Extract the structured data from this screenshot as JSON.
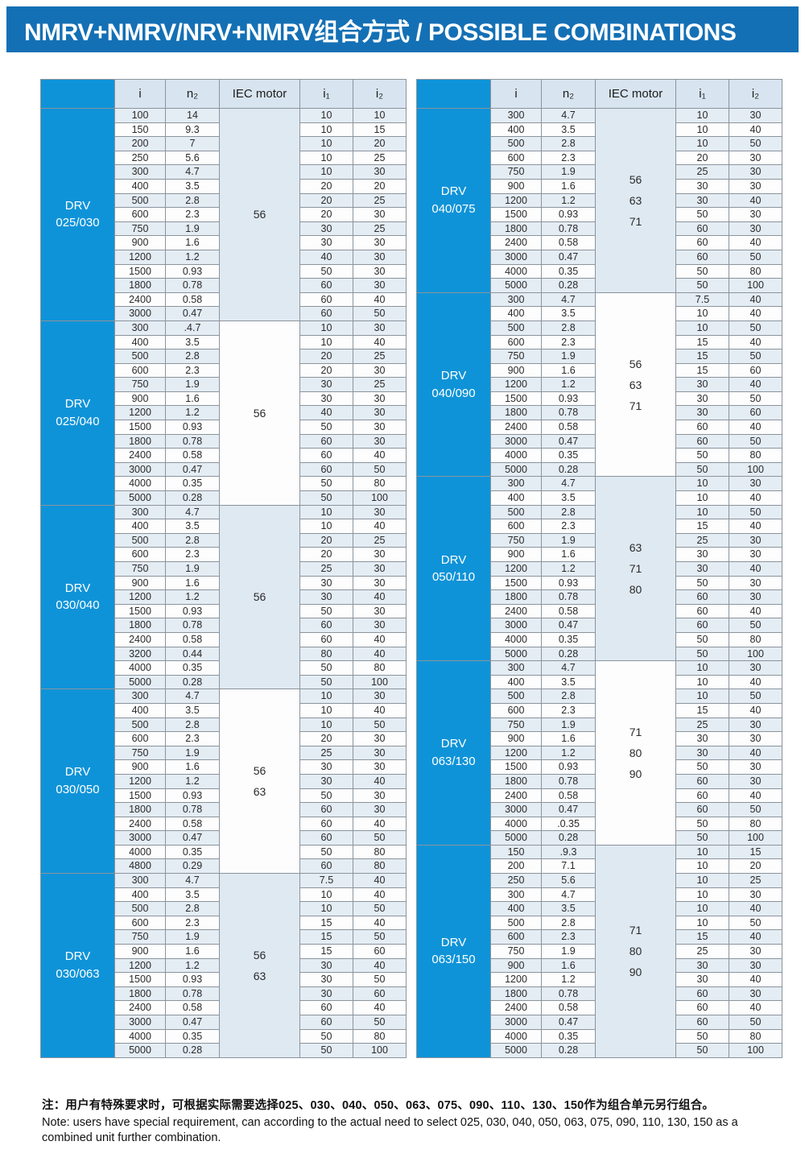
{
  "title": "NMRV+NMRV/NRV+NMRV组合方式 / POSSIBLE COMBINATIONS",
  "colors": {
    "title_bar_blue": "#1470b5",
    "group_cell_blue": "#0f93d8",
    "header_row_bg": "#d8e4ef",
    "row_tint": "#e4ecf4",
    "iec_tint": "#dfe9f2"
  },
  "columns": [
    {
      "key": "i",
      "label": "i"
    },
    {
      "key": "n2",
      "label": "n₂"
    },
    {
      "key": "iec",
      "label": "IEC motor"
    },
    {
      "key": "i1",
      "label": "i₁"
    },
    {
      "key": "i2",
      "label": "i₂"
    }
  ],
  "tables": [
    {
      "side": "left",
      "groups": [
        {
          "series": "DRV",
          "size": "025/030",
          "iec": [
            "56"
          ],
          "rows": [
            [
              "100",
              "14",
              "10",
              "10"
            ],
            [
              "150",
              "9.3",
              "10",
              "15"
            ],
            [
              "200",
              "7",
              "10",
              "20"
            ],
            [
              "250",
              "5.6",
              "10",
              "25"
            ],
            [
              "300",
              "4.7",
              "10",
              "30"
            ],
            [
              "400",
              "3.5",
              "20",
              "20"
            ],
            [
              "500",
              "2.8",
              "20",
              "25"
            ],
            [
              "600",
              "2.3",
              "20",
              "30"
            ],
            [
              "750",
              "1.9",
              "30",
              "25"
            ],
            [
              "900",
              "1.6",
              "30",
              "30"
            ],
            [
              "1200",
              "1.2",
              "40",
              "30"
            ],
            [
              "1500",
              "0.93",
              "50",
              "30"
            ],
            [
              "1800",
              "0.78",
              "60",
              "30"
            ],
            [
              "2400",
              "0.58",
              "60",
              "40"
            ],
            [
              "3000",
              "0.47",
              "60",
              "50"
            ]
          ]
        },
        {
          "series": "DRV",
          "size": "025/040",
          "iec": [
            "56"
          ],
          "rows": [
            [
              "300",
              ".4.7",
              "10",
              "30"
            ],
            [
              "400",
              "3.5",
              "10",
              "40"
            ],
            [
              "500",
              "2.8",
              "20",
              "25"
            ],
            [
              "600",
              "2.3",
              "20",
              "30"
            ],
            [
              "750",
              "1.9",
              "30",
              "25"
            ],
            [
              "900",
              "1.6",
              "30",
              "30"
            ],
            [
              "1200",
              "1.2",
              "40",
              "30"
            ],
            [
              "1500",
              "0.93",
              "50",
              "30"
            ],
            [
              "1800",
              "0.78",
              "60",
              "30"
            ],
            [
              "2400",
              "0.58",
              "60",
              "40"
            ],
            [
              "3000",
              "0.47",
              "60",
              "50"
            ],
            [
              "4000",
              "0.35",
              "50",
              "80"
            ],
            [
              "5000",
              "0.28",
              "50",
              "100"
            ]
          ]
        },
        {
          "series": "DRV",
          "size": "030/040",
          "iec": [
            "56"
          ],
          "rows": [
            [
              "300",
              "4.7",
              "10",
              "30"
            ],
            [
              "400",
              "3.5",
              "10",
              "40"
            ],
            [
              "500",
              "2.8",
              "20",
              "25"
            ],
            [
              "600",
              "2.3",
              "20",
              "30"
            ],
            [
              "750",
              "1.9",
              "25",
              "30"
            ],
            [
              "900",
              "1.6",
              "30",
              "30"
            ],
            [
              "1200",
              "1.2",
              "30",
              "40"
            ],
            [
              "1500",
              "0.93",
              "50",
              "30"
            ],
            [
              "1800",
              "0.78",
              "60",
              "30"
            ],
            [
              "2400",
              "0.58",
              "60",
              "40"
            ],
            [
              "3200",
              "0.44",
              "80",
              "40"
            ],
            [
              "4000",
              "0.35",
              "50",
              "80"
            ],
            [
              "5000",
              "0.28",
              "50",
              "100"
            ]
          ]
        },
        {
          "series": "DRV",
          "size": "030/050",
          "iec": [
            "56",
            "63"
          ],
          "rows": [
            [
              "300",
              "4.7",
              "10",
              "30"
            ],
            [
              "400",
              "3.5",
              "10",
              "40"
            ],
            [
              "500",
              "2.8",
              "10",
              "50"
            ],
            [
              "600",
              "2.3",
              "20",
              "30"
            ],
            [
              "750",
              "1.9",
              "25",
              "30"
            ],
            [
              "900",
              "1.6",
              "30",
              "30"
            ],
            [
              "1200",
              "1.2",
              "30",
              "40"
            ],
            [
              "1500",
              "0.93",
              "50",
              "30"
            ],
            [
              "1800",
              "0.78",
              "60",
              "30"
            ],
            [
              "2400",
              "0.58",
              "60",
              "40"
            ],
            [
              "3000",
              "0.47",
              "60",
              "50"
            ],
            [
              "4000",
              "0.35",
              "50",
              "80"
            ],
            [
              "4800",
              "0.29",
              "60",
              "80"
            ]
          ]
        },
        {
          "series": "DRV",
          "size": "030/063",
          "iec": [
            "56",
            "63"
          ],
          "rows": [
            [
              "300",
              "4.7",
              "7.5",
              "40"
            ],
            [
              "400",
              "3.5",
              "10",
              "40"
            ],
            [
              "500",
              "2.8",
              "10",
              "50"
            ],
            [
              "600",
              "2.3",
              "15",
              "40"
            ],
            [
              "750",
              "1.9",
              "15",
              "50"
            ],
            [
              "900",
              "1.6",
              "15",
              "60"
            ],
            [
              "1200",
              "1.2",
              "30",
              "40"
            ],
            [
              "1500",
              "0.93",
              "30",
              "50"
            ],
            [
              "1800",
              "0.78",
              "30",
              "60"
            ],
            [
              "2400",
              "0.58",
              "60",
              "40"
            ],
            [
              "3000",
              "0.47",
              "60",
              "50"
            ],
            [
              "4000",
              "0.35",
              "50",
              "80"
            ],
            [
              "5000",
              "0.28",
              "50",
              "100"
            ]
          ]
        }
      ]
    },
    {
      "side": "right",
      "groups": [
        {
          "series": "DRV",
          "size": "040/075",
          "iec": [
            "56",
            "63",
            "71"
          ],
          "rows": [
            [
              "300",
              "4.7",
              "10",
              "30"
            ],
            [
              "400",
              "3.5",
              "10",
              "40"
            ],
            [
              "500",
              "2.8",
              "10",
              "50"
            ],
            [
              "600",
              "2.3",
              "20",
              "30"
            ],
            [
              "750",
              "1.9",
              "25",
              "30"
            ],
            [
              "900",
              "1.6",
              "30",
              "30"
            ],
            [
              "1200",
              "1.2",
              "30",
              "40"
            ],
            [
              "1500",
              "0.93",
              "50",
              "30"
            ],
            [
              "1800",
              "0.78",
              "60",
              "30"
            ],
            [
              "2400",
              "0.58",
              "60",
              "40"
            ],
            [
              "3000",
              "0.47",
              "60",
              "50"
            ],
            [
              "4000",
              "0.35",
              "50",
              "80"
            ],
            [
              "5000",
              "0.28",
              "50",
              "100"
            ]
          ]
        },
        {
          "series": "DRV",
          "size": "040/090",
          "iec": [
            "56",
            "63",
            "71"
          ],
          "rows": [
            [
              "300",
              "4.7",
              "7.5",
              "40"
            ],
            [
              "400",
              "3.5",
              "10",
              "40"
            ],
            [
              "500",
              "2.8",
              "10",
              "50"
            ],
            [
              "600",
              "2.3",
              "15",
              "40"
            ],
            [
              "750",
              "1.9",
              "15",
              "50"
            ],
            [
              "900",
              "1.6",
              "15",
              "60"
            ],
            [
              "1200",
              "1.2",
              "30",
              "40"
            ],
            [
              "1500",
              "0.93",
              "30",
              "50"
            ],
            [
              "1800",
              "0.78",
              "30",
              "60"
            ],
            [
              "2400",
              "0.58",
              "60",
              "40"
            ],
            [
              "3000",
              "0.47",
              "60",
              "50"
            ],
            [
              "4000",
              "0.35",
              "50",
              "80"
            ],
            [
              "5000",
              "0.28",
              "50",
              "100"
            ]
          ]
        },
        {
          "series": "DRV",
          "size": "050/110",
          "iec": [
            "63",
            "71",
            "80"
          ],
          "rows": [
            [
              "300",
              "4.7",
              "10",
              "30"
            ],
            [
              "400",
              "3.5",
              "10",
              "40"
            ],
            [
              "500",
              "2.8",
              "10",
              "50"
            ],
            [
              "600",
              "2.3",
              "15",
              "40"
            ],
            [
              "750",
              "1.9",
              "25",
              "30"
            ],
            [
              "900",
              "1.6",
              "30",
              "30"
            ],
            [
              "1200",
              "1.2",
              "30",
              "40"
            ],
            [
              "1500",
              "0.93",
              "50",
              "30"
            ],
            [
              "1800",
              "0.78",
              "60",
              "30"
            ],
            [
              "2400",
              "0.58",
              "60",
              "40"
            ],
            [
              "3000",
              "0.47",
              "60",
              "50"
            ],
            [
              "4000",
              "0.35",
              "50",
              "80"
            ],
            [
              "5000",
              "0.28",
              "50",
              "100"
            ]
          ]
        },
        {
          "series": "DRV",
          "size": "063/130",
          "iec": [
            "71",
            "80",
            "90"
          ],
          "rows": [
            [
              "300",
              "4.7",
              "10",
              "30"
            ],
            [
              "400",
              "3.5",
              "10",
              "40"
            ],
            [
              "500",
              "2.8",
              "10",
              "50"
            ],
            [
              "600",
              "2.3",
              "15",
              "40"
            ],
            [
              "750",
              "1.9",
              "25",
              "30"
            ],
            [
              "900",
              "1.6",
              "30",
              "30"
            ],
            [
              "1200",
              "1.2",
              "30",
              "40"
            ],
            [
              "1500",
              "0.93",
              "50",
              "30"
            ],
            [
              "1800",
              "0.78",
              "60",
              "30"
            ],
            [
              "2400",
              "0.58",
              "60",
              "40"
            ],
            [
              "3000",
              "0.47",
              "60",
              "50"
            ],
            [
              "4000",
              ".0.35",
              "50",
              "80"
            ],
            [
              "5000",
              "0.28",
              "50",
              "100"
            ]
          ]
        },
        {
          "series": "DRV",
          "size": "063/150",
          "iec": [
            "71",
            "80",
            "90"
          ],
          "rows": [
            [
              "150",
              ".9.3",
              "10",
              "15"
            ],
            [
              "200",
              "7.1",
              "10",
              "20"
            ],
            [
              "250",
              "5.6",
              "10",
              "25"
            ],
            [
              "300",
              "4.7",
              "10",
              "30"
            ],
            [
              "400",
              "3.5",
              "10",
              "40"
            ],
            [
              "500",
              "2.8",
              "10",
              "50"
            ],
            [
              "600",
              "2.3",
              "15",
              "40"
            ],
            [
              "750",
              "1.9",
              "25",
              "30"
            ],
            [
              "900",
              "1.6",
              "30",
              "30"
            ],
            [
              "1200",
              "1.2",
              "30",
              "40"
            ],
            [
              "1800",
              "0.78",
              "60",
              "30"
            ],
            [
              "2400",
              "0.58",
              "60",
              "40"
            ],
            [
              "3000",
              "0.47",
              "60",
              "50"
            ],
            [
              "4000",
              "0.35",
              "50",
              "80"
            ],
            [
              "5000",
              "0.28",
              "50",
              "100"
            ]
          ]
        }
      ]
    }
  ],
  "note": {
    "zh": "注：用户有特殊要求时，可根据实际需要选择025、030、040、050、063、075、090、110、130、150作为组合单元另行组合。",
    "en": "Note: users have special requirement, can according to the actual need to select 025, 030, 040, 050, 063, 075, 090, 110, 130, 150 as a combined unit further combination."
  }
}
